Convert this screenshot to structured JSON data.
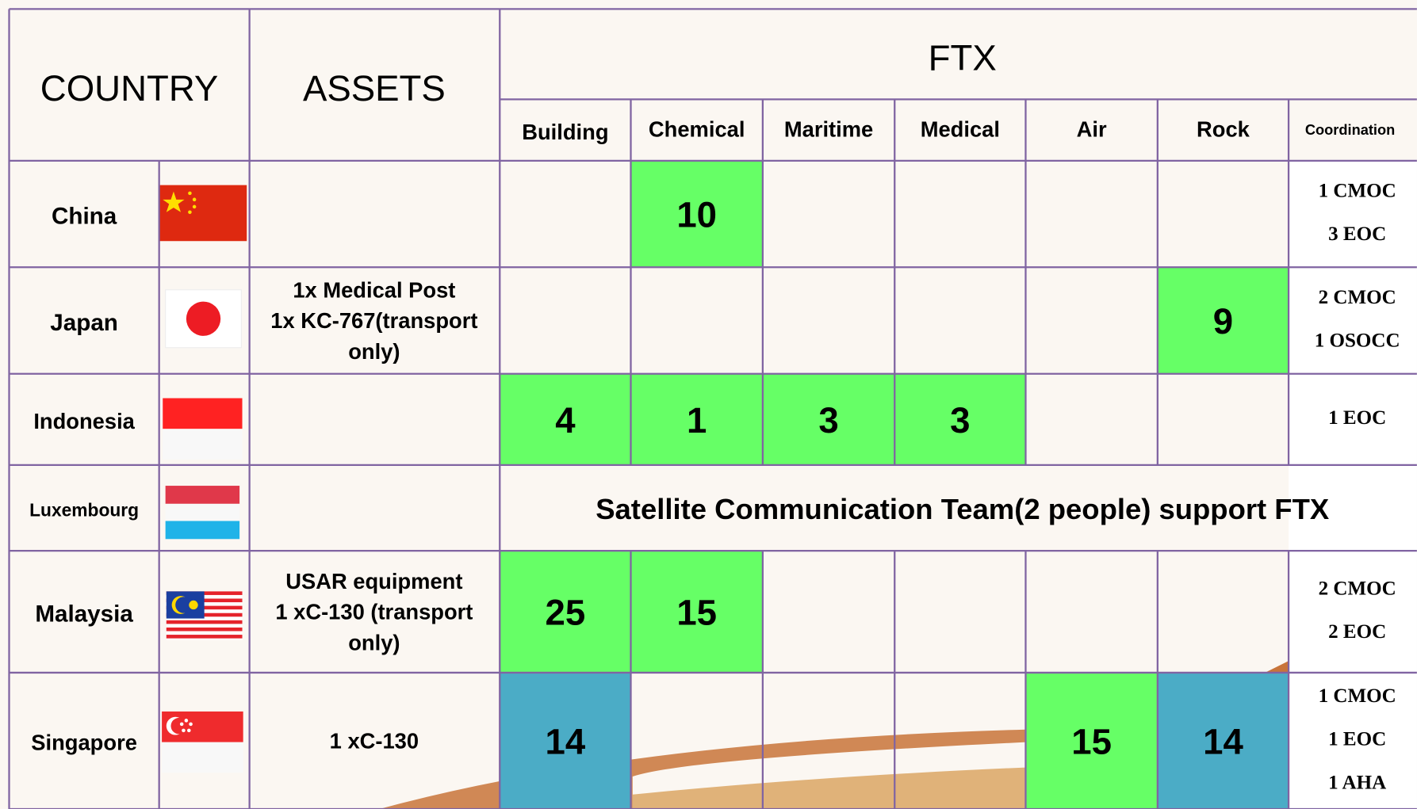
{
  "table": {
    "header": {
      "country": "COUNTRY",
      "assets": "ASSETS",
      "ftx": "FTX",
      "columns": [
        "Building",
        "Chemical",
        "Maritime",
        "Medical",
        "Air",
        "Rock",
        "Coordination"
      ]
    },
    "rows": [
      {
        "country": "China",
        "assets": null,
        "cells": [
          null,
          {
            "value": 10,
            "fill": "#66ff66"
          },
          null,
          null,
          null,
          null
        ],
        "coordination": [
          "1 CMOC",
          "3 EOC"
        ]
      },
      {
        "country": "Japan",
        "assets": [
          "1x Medical Post",
          "1x KC-767(transport",
          "only)"
        ],
        "cells": [
          null,
          null,
          null,
          null,
          null,
          {
            "value": 9,
            "fill": "#66ff66"
          }
        ],
        "coordination": [
          "2 CMOC",
          "1 OSOCC"
        ]
      },
      {
        "country": "Indonesia",
        "assets": null,
        "cells": [
          {
            "value": 4,
            "fill": "#66ff66"
          },
          {
            "value": 1,
            "fill": "#66ff66"
          },
          {
            "value": 3,
            "fill": "#66ff66"
          },
          {
            "value": 3,
            "fill": "#66ff66"
          },
          null,
          null
        ],
        "coordination": [
          "1 EOC"
        ]
      },
      {
        "country": "Luxembourg",
        "assets": null,
        "note": "Satellite Communication Team(2 people) support FTX"
      },
      {
        "country": "Malaysia",
        "assets": [
          "USAR equipment",
          "1 xC-130 (transport",
          "only)"
        ],
        "cells": [
          {
            "value": 25,
            "fill": "#66ff66"
          },
          {
            "value": 15,
            "fill": "#66ff66"
          },
          null,
          null,
          null,
          null
        ],
        "coordination": [
          "2 CMOC",
          "2 EOC"
        ]
      },
      {
        "country": "Singapore",
        "assets": [
          "1 xC-130"
        ],
        "cells": [
          {
            "value": 14,
            "fill": "#4bacc6"
          },
          null,
          null,
          null,
          {
            "value": 15,
            "fill": "#66ff66"
          },
          {
            "value": 14,
            "fill": "#4bacc6"
          }
        ],
        "coordination": [
          "1 CMOC",
          "1 EOC",
          "1 AHA"
        ]
      }
    ]
  }
}
